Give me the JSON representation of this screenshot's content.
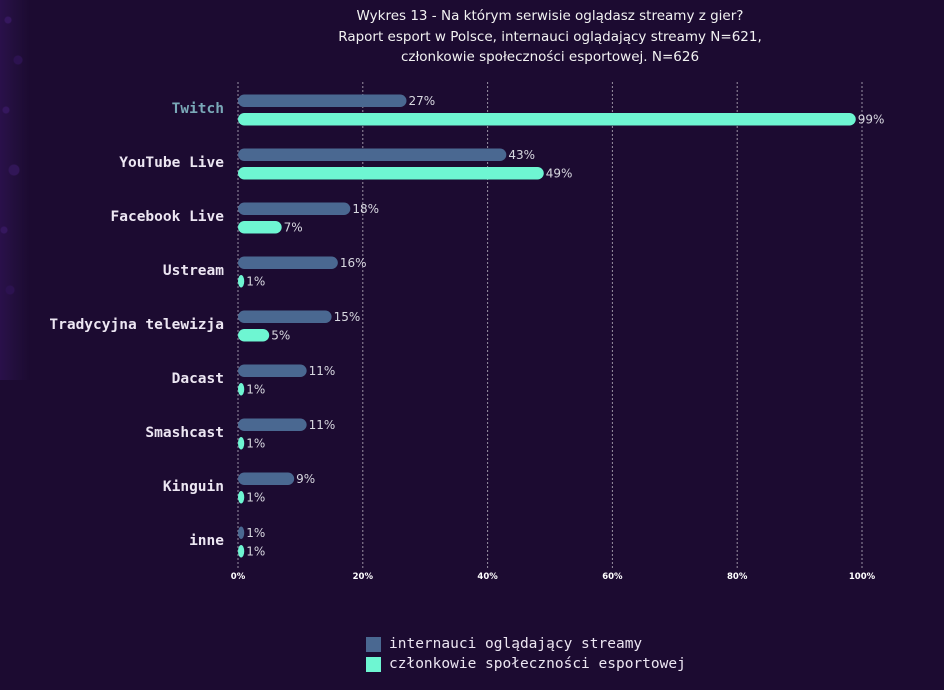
{
  "title_lines": [
    "Wykres 13 - Na którym serwisie oglądasz streamy z gier?",
    "Raport esport w Polsce, internauci oglądający streamy N=621,",
    "członkowie społeczności esportowej. N=626"
  ],
  "chart_data": {
    "type": "bar",
    "orientation": "horizontal",
    "title": "Wykres 13 - Na którym serwisie oglądasz streamy z gier? Raport esport w Polsce, internauci oglądający streamy N=621, członkowie społeczności esportowej. N=626",
    "categories": [
      "Twitch",
      "YouTube Live",
      "Facebook Live",
      "Ustream",
      "Tradycyjna telewizja",
      "Dacast",
      "Smashcast",
      "Kinguin",
      "inne"
    ],
    "highlighted_category": "Twitch",
    "series": [
      {
        "name": "internauci oglądający streamy",
        "color": "#4a6891",
        "values": [
          27,
          43,
          18,
          16,
          15,
          11,
          11,
          9,
          1
        ]
      },
      {
        "name": "członkowie społeczności esportowej",
        "color": "#6ef6d2",
        "values": [
          99,
          49,
          7,
          1,
          5,
          1,
          1,
          1,
          1
        ]
      }
    ],
    "value_suffix": "%",
    "xlim": [
      0,
      100
    ],
    "xticks": [
      0,
      20,
      40,
      60,
      80,
      100
    ],
    "xtick_labels": [
      "0%",
      "20%",
      "40%",
      "60%",
      "80%",
      "100%"
    ],
    "grid": true,
    "legend_position": "bottom-center"
  }
}
